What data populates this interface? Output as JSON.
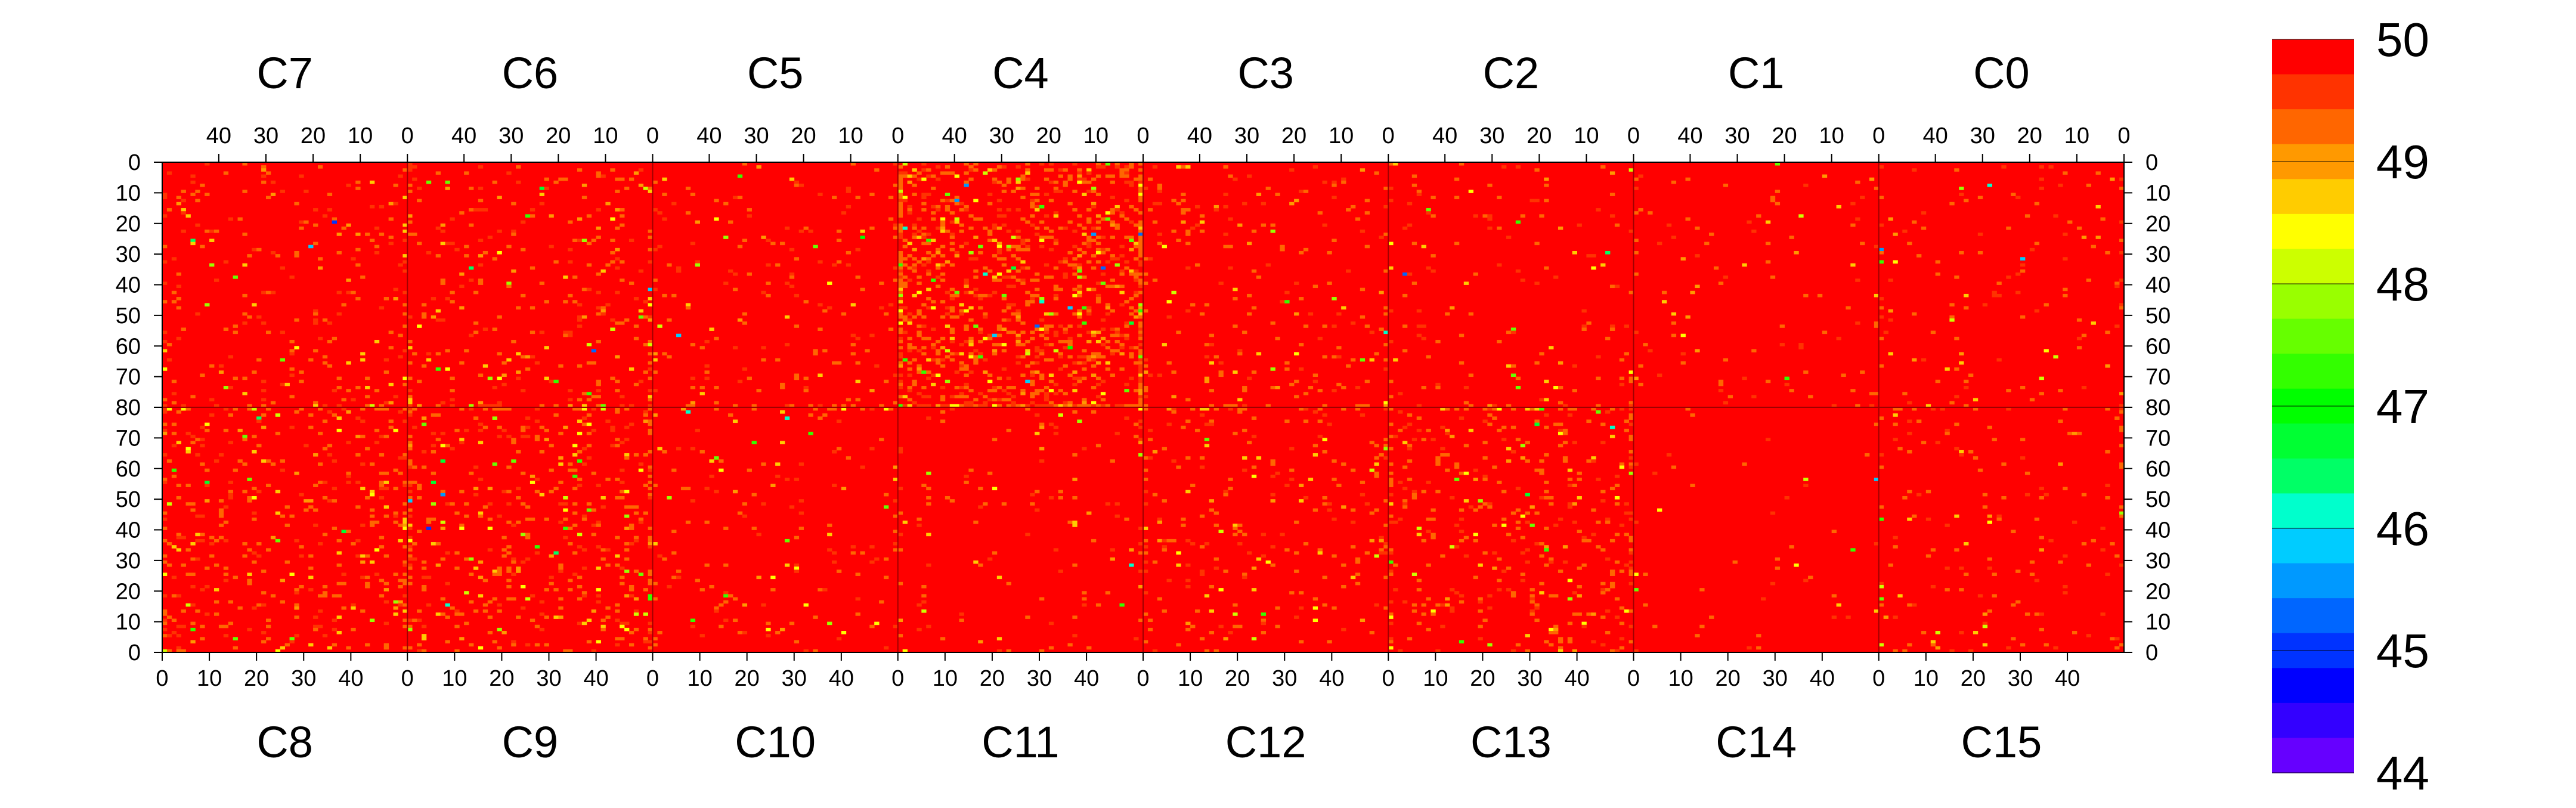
{
  "chart_data": {
    "type": "heatmap",
    "top_chips": [
      {
        "label": "C7",
        "x_ticks": [
          "40",
          "30",
          "20",
          "10",
          "0"
        ]
      },
      {
        "label": "C6",
        "x_ticks": [
          "40",
          "30",
          "20",
          "10",
          "0"
        ]
      },
      {
        "label": "C5",
        "x_ticks": [
          "40",
          "30",
          "20",
          "10",
          "0"
        ]
      },
      {
        "label": "C4",
        "x_ticks": [
          "40",
          "30",
          "20",
          "10",
          "0"
        ]
      },
      {
        "label": "C3",
        "x_ticks": [
          "40",
          "30",
          "20",
          "10",
          "0"
        ]
      },
      {
        "label": "C2",
        "x_ticks": [
          "40",
          "30",
          "20",
          "10",
          "0"
        ]
      },
      {
        "label": "C1",
        "x_ticks": [
          "40",
          "30",
          "20",
          "10",
          "0"
        ]
      },
      {
        "label": "C0",
        "x_ticks": [
          "40",
          "30",
          "20",
          "10",
          "0"
        ]
      }
    ],
    "bottom_chips": [
      {
        "label": "C8",
        "x_ticks": [
          "0",
          "10",
          "20",
          "30",
          "40"
        ]
      },
      {
        "label": "C9",
        "x_ticks": [
          "0",
          "10",
          "20",
          "30",
          "40"
        ]
      },
      {
        "label": "C10",
        "x_ticks": [
          "0",
          "10",
          "20",
          "30",
          "40"
        ]
      },
      {
        "label": "C11",
        "x_ticks": [
          "0",
          "10",
          "20",
          "30",
          "40"
        ]
      },
      {
        "label": "C12",
        "x_ticks": [
          "0",
          "10",
          "20",
          "30",
          "40"
        ]
      },
      {
        "label": "C13",
        "x_ticks": [
          "0",
          "10",
          "20",
          "30",
          "40"
        ]
      },
      {
        "label": "C14",
        "x_ticks": [
          "0",
          "10",
          "20",
          "30",
          "40"
        ]
      },
      {
        "label": "C15",
        "x_ticks": [
          "0",
          "10",
          "20",
          "30",
          "40"
        ]
      }
    ],
    "chip_columns": 52,
    "chip_rows": 80,
    "top_y_ticks": [
      "0",
      "10",
      "20",
      "30",
      "40",
      "50",
      "60",
      "70",
      "80"
    ],
    "bottom_y_ticks": [
      "70",
      "60",
      "50",
      "40",
      "30",
      "20",
      "10",
      "0"
    ],
    "z_range": [
      44,
      50
    ],
    "colorbar_ticks": [
      "50",
      "49",
      "48",
      "47",
      "46",
      "45",
      "44"
    ],
    "colorbar_colors": [
      "#ff0000",
      "#ff3300",
      "#ff6600",
      "#ff9900",
      "#ffcc00",
      "#ffff00",
      "#ccff00",
      "#99ff00",
      "#66ff00",
      "#33ff00",
      "#00ff00",
      "#00ff33",
      "#00ff66",
      "#00ffcc",
      "#00ccff",
      "#0099ff",
      "#0066ff",
      "#0033ff",
      "#0000ff",
      "#3300ff",
      "#6600ff"
    ],
    "background_value": 50,
    "chip_activity": {
      "C7": 0.05,
      "C6": 0.07,
      "C5": 0.04,
      "C4": 0.22,
      "C3": 0.05,
      "C2": 0.035,
      "C1": 0.02,
      "C0": 0.025,
      "C8": 0.09,
      "C9": 0.1,
      "C10": 0.03,
      "C11": 0.03,
      "C12": 0.05,
      "C13": 0.08,
      "C14": 0.01,
      "C15": 0.035
    }
  }
}
